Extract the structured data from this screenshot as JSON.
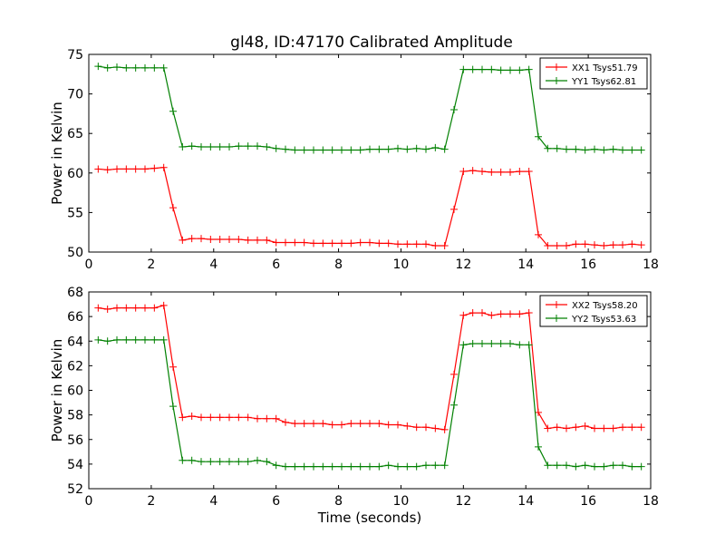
{
  "title": "gl48, ID:47170 Calibrated Amplitude",
  "colors": {
    "xx": "#ff0000",
    "yy": "#008000",
    "axes": "#000000"
  },
  "chart_data": [
    {
      "type": "line",
      "xlabel": "",
      "ylabel": "Power in Kelvin",
      "xlim": [
        0,
        18
      ],
      "ylim": [
        50,
        75
      ],
      "xticks": [
        "0",
        "2",
        "4",
        "6",
        "8",
        "10",
        "12",
        "14",
        "16",
        "18"
      ],
      "yticks": [
        "50",
        "55",
        "60",
        "65",
        "70",
        "75"
      ],
      "legend_position": "top-right",
      "x": [
        0.3,
        0.6,
        0.9,
        1.2,
        1.5,
        1.8,
        2.1,
        2.4,
        2.7,
        3.0,
        3.3,
        3.6,
        3.9,
        4.2,
        4.5,
        4.8,
        5.1,
        5.4,
        5.7,
        6.0,
        6.3,
        6.6,
        6.9,
        7.2,
        7.5,
        7.8,
        8.1,
        8.4,
        8.7,
        9.0,
        9.3,
        9.6,
        9.9,
        10.2,
        10.5,
        10.8,
        11.1,
        11.4,
        11.7,
        12.0,
        12.3,
        12.6,
        12.9,
        13.2,
        13.5,
        13.8,
        14.1,
        14.4,
        14.7,
        15.0,
        15.3,
        15.6,
        15.9,
        16.2,
        16.5,
        16.8,
        17.1,
        17.4,
        17.7
      ],
      "series": [
        {
          "name": "XX1 Tsys51.79",
          "color": "#ff0000",
          "values": [
            60.5,
            60.4,
            60.5,
            60.5,
            60.5,
            60.5,
            60.6,
            60.7,
            55.6,
            51.5,
            51.7,
            51.7,
            51.6,
            51.6,
            51.6,
            51.6,
            51.5,
            51.5,
            51.5,
            51.2,
            51.2,
            51.2,
            51.2,
            51.1,
            51.1,
            51.1,
            51.1,
            51.1,
            51.2,
            51.2,
            51.1,
            51.1,
            51.0,
            51.0,
            51.0,
            51.0,
            50.8,
            50.8,
            55.4,
            60.2,
            60.3,
            60.2,
            60.1,
            60.1,
            60.1,
            60.2,
            60.2,
            52.2,
            50.8,
            50.8,
            50.8,
            51.0,
            51.0,
            50.9,
            50.8,
            50.9,
            50.9,
            51.0,
            50.9
          ]
        },
        {
          "name": "YY1 Tsys62.81",
          "color": "#008000",
          "values": [
            73.5,
            73.3,
            73.4,
            73.3,
            73.3,
            73.3,
            73.3,
            73.3,
            67.8,
            63.3,
            63.4,
            63.3,
            63.3,
            63.3,
            63.3,
            63.4,
            63.4,
            63.4,
            63.3,
            63.1,
            63.0,
            62.9,
            62.9,
            62.9,
            62.9,
            62.9,
            62.9,
            62.9,
            62.9,
            63.0,
            63.0,
            63.0,
            63.1,
            63.0,
            63.1,
            63.0,
            63.2,
            63.0,
            68.0,
            73.1,
            73.1,
            73.1,
            73.1,
            73.0,
            73.0,
            73.0,
            73.1,
            64.6,
            63.1,
            63.1,
            63.0,
            63.0,
            62.9,
            63.0,
            62.9,
            63.0,
            62.9,
            62.9,
            62.9
          ]
        }
      ]
    },
    {
      "type": "line",
      "xlabel": "Time (seconds)",
      "ylabel": "Power in Kelvin",
      "xlim": [
        0,
        18
      ],
      "ylim": [
        52,
        68
      ],
      "xticks": [
        "0",
        "2",
        "4",
        "6",
        "8",
        "10",
        "12",
        "14",
        "16",
        "18"
      ],
      "yticks": [
        "52",
        "54",
        "56",
        "58",
        "60",
        "62",
        "64",
        "66",
        "68"
      ],
      "legend_position": "top-right",
      "x": [
        0.3,
        0.6,
        0.9,
        1.2,
        1.5,
        1.8,
        2.1,
        2.4,
        2.7,
        3.0,
        3.3,
        3.6,
        3.9,
        4.2,
        4.5,
        4.8,
        5.1,
        5.4,
        5.7,
        6.0,
        6.3,
        6.6,
        6.9,
        7.2,
        7.5,
        7.8,
        8.1,
        8.4,
        8.7,
        9.0,
        9.3,
        9.6,
        9.9,
        10.2,
        10.5,
        10.8,
        11.1,
        11.4,
        11.7,
        12.0,
        12.3,
        12.6,
        12.9,
        13.2,
        13.5,
        13.8,
        14.1,
        14.4,
        14.7,
        15.0,
        15.3,
        15.6,
        15.9,
        16.2,
        16.5,
        16.8,
        17.1,
        17.4,
        17.7
      ],
      "series": [
        {
          "name": "XX2 Tsys58.20",
          "color": "#ff0000",
          "values": [
            66.7,
            66.6,
            66.7,
            66.7,
            66.7,
            66.7,
            66.7,
            66.9,
            61.9,
            57.8,
            57.9,
            57.8,
            57.8,
            57.8,
            57.8,
            57.8,
            57.8,
            57.7,
            57.7,
            57.7,
            57.4,
            57.3,
            57.3,
            57.3,
            57.3,
            57.2,
            57.2,
            57.3,
            57.3,
            57.3,
            57.3,
            57.2,
            57.2,
            57.1,
            57.0,
            57.0,
            56.9,
            56.8,
            61.3,
            66.1,
            66.3,
            66.3,
            66.1,
            66.2,
            66.2,
            66.2,
            66.3,
            58.2,
            56.9,
            57.0,
            56.9,
            57.0,
            57.1,
            56.9,
            56.9,
            56.9,
            57.0,
            57.0,
            57.0
          ]
        },
        {
          "name": "YY2 Tsys53.63",
          "color": "#008000",
          "values": [
            64.1,
            64.0,
            64.1,
            64.1,
            64.1,
            64.1,
            64.1,
            64.1,
            58.7,
            54.3,
            54.3,
            54.2,
            54.2,
            54.2,
            54.2,
            54.2,
            54.2,
            54.3,
            54.2,
            53.9,
            53.8,
            53.8,
            53.8,
            53.8,
            53.8,
            53.8,
            53.8,
            53.8,
            53.8,
            53.8,
            53.8,
            53.9,
            53.8,
            53.8,
            53.8,
            53.9,
            53.9,
            53.9,
            58.8,
            63.7,
            63.8,
            63.8,
            63.8,
            63.8,
            63.8,
            63.7,
            63.7,
            55.4,
            53.9,
            53.9,
            53.9,
            53.8,
            53.9,
            53.8,
            53.8,
            53.9,
            53.9,
            53.8,
            53.8
          ]
        }
      ]
    }
  ]
}
